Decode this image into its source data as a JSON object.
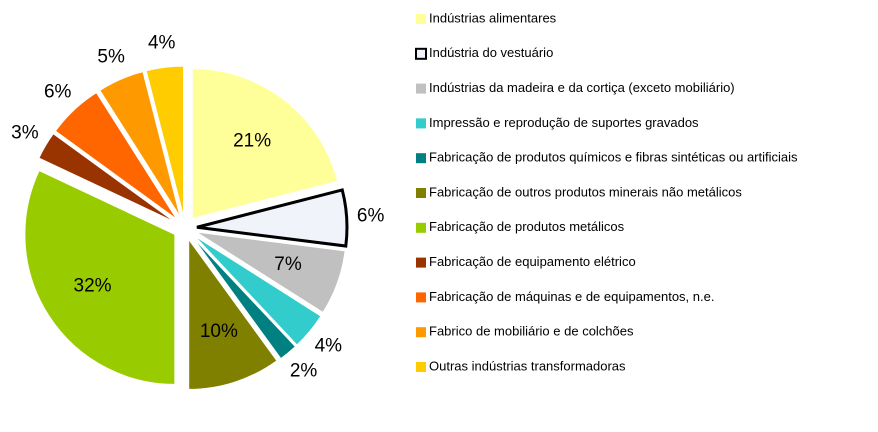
{
  "chart_data": {
    "type": "pie",
    "categories": [
      "Indústrias alimentares",
      "Indústria do vestuário",
      "Indústrias da madeira e da cortiça (exceto mobiliário)",
      "Impressão e reprodução de suportes gravados",
      "Fabricação de produtos químicos e fibras sintéticas ou artificiais",
      "Fabricação de outros produtos minerais não metálicos",
      "Fabricação de produtos metálicos",
      "Fabricação de equipamento elétrico",
      "Fabricação de máquinas e de equipamentos, n.e.",
      "Fabrico de mobiliário e de colchões",
      "Outras indústrias transformadoras"
    ],
    "values": [
      21,
      6,
      7,
      4,
      2,
      10,
      32,
      3,
      6,
      5,
      4
    ],
    "value_labels": [
      "21%",
      "6%",
      "7%",
      "4%",
      "2%",
      "10%",
      "32%",
      "3%",
      "6%",
      "5%",
      "4%"
    ],
    "colors": [
      "#ffff99",
      "#f0f4fa",
      "#c0c0c0",
      "#33cccc",
      "#008080",
      "#808000",
      "#99cc00",
      "#993300",
      "#ff6600",
      "#ff9900",
      "#ffcc00"
    ],
    "legend": "right"
  }
}
